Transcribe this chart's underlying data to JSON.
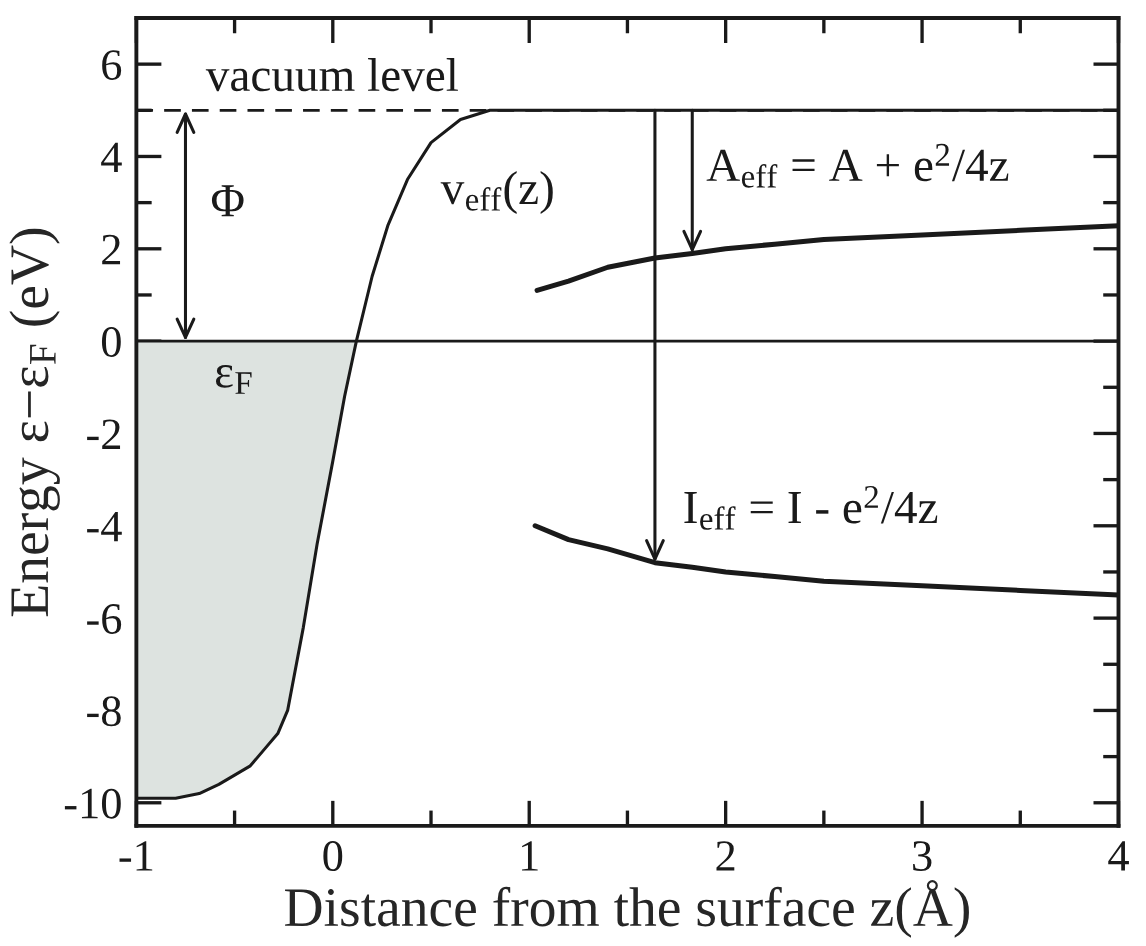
{
  "chart_data": {
    "type": "line",
    "xlabel": "Distance from the surface z(Å)",
    "ylabel": "Energy ε−ε$_{F}$ (eV)",
    "series": [
      {
        "type": "area",
        "color": "#dde3e0",
        "x": [
          -1.0,
          -0.9,
          -0.8,
          -0.68,
          -0.58,
          -0.5,
          -0.42,
          -0.34,
          -0.28,
          -0.23,
          -0.15,
          -0.08,
          0.0,
          0.06,
          0.12
        ],
        "values": [
          -9.9,
          -9.9,
          -9.9,
          -9.8,
          -9.6,
          -9.4,
          -9.2,
          -8.8,
          -8.5,
          -8.0,
          -6.2,
          -4.4,
          -2.6,
          -1.2,
          0.0
        ]
      },
      {
        "name": "v$_{eff}$(z)",
        "color": "#1a1a1a",
        "x": [
          -1.0,
          -0.9,
          -0.8,
          -0.68,
          -0.58,
          -0.5,
          -0.42,
          -0.34,
          -0.28,
          -0.23,
          -0.15,
          -0.08,
          0.0,
          0.06,
          0.12,
          0.2,
          0.28,
          0.38,
          0.5,
          0.65,
          0.8,
          1.0,
          2.0,
          3.0,
          4.0
        ],
        "values": [
          -9.9,
          -9.9,
          -9.9,
          -9.8,
          -9.6,
          -9.4,
          -9.2,
          -8.8,
          -8.5,
          -8.0,
          -6.2,
          -4.4,
          -2.6,
          -1.2,
          0.0,
          1.4,
          2.5,
          3.5,
          4.3,
          4.8,
          5.0,
          5.0,
          5.0,
          5.0,
          5.0
        ]
      },
      {
        "color": "#1a1a1a",
        "x": [
          1.04,
          1.2,
          1.4,
          1.64,
          1.83,
          2.0,
          2.25,
          2.5,
          3.0,
          3.5,
          4.0
        ],
        "values": [
          1.1,
          1.3,
          1.6,
          1.8,
          1.9,
          2.0,
          2.1,
          2.2,
          2.3,
          2.4,
          2.5
        ]
      },
      {
        "color": "#1a1a1a",
        "x": [
          1.03,
          1.2,
          1.4,
          1.64,
          1.83,
          2.0,
          2.25,
          2.5,
          3.0,
          3.5,
          4.0
        ],
        "values": [
          -4.0,
          -4.3,
          -4.5,
          -4.8,
          -4.9,
          -5.0,
          -5.1,
          -5.2,
          -5.3,
          -5.4,
          -5.5
        ]
      }
    ],
    "xlim": [
      -1,
      4
    ],
    "xticks": [
      -1,
      {
        "value": -0.5,
        "label": null
      },
      0,
      {
        "value": 0.5,
        "label": null
      },
      1,
      {
        "value": 1.5,
        "label": null
      },
      2,
      {
        "value": 2.5,
        "label": null
      },
      3,
      {
        "value": 3.5,
        "label": null
      },
      4
    ],
    "ylim": [
      -10.5,
      7
    ],
    "yticks": [
      -10,
      {
        "value": -9,
        "label": null
      },
      -8,
      {
        "value": -7,
        "label": null
      },
      -6,
      {
        "value": -5,
        "label": null
      },
      -4,
      {
        "value": -3,
        "label": null
      },
      -2,
      {
        "value": -1,
        "label": null
      },
      0,
      {
        "value": 1,
        "label": null
      },
      2,
      {
        "value": 3,
        "label": null
      },
      4,
      {
        "value": 5,
        "label": null
      },
      6
    ],
    "ref_lines": [
      {
        "axis": "y",
        "value": 0,
        "label": "ε$_{F}$",
        "color": "#1a1a1a",
        "line_style": "solid"
      },
      {
        "axis": "y",
        "value": 5,
        "label": "vacuum level",
        "color": "#1a1a1a",
        "line_style": "dashed"
      }
    ],
    "annotations": [
      {
        "text": "Φ",
        "x": -0.75,
        "y": 0
      },
      {
        "text": "A$_{eff}$ = A + e$^{2}$/4z",
        "x": 1.83,
        "y": 1.9
      },
      {
        "text": "I$_{eff}$ = I - e$^{2}$/4z",
        "x": 1.64,
        "y": -4.8
      }
    ]
  }
}
